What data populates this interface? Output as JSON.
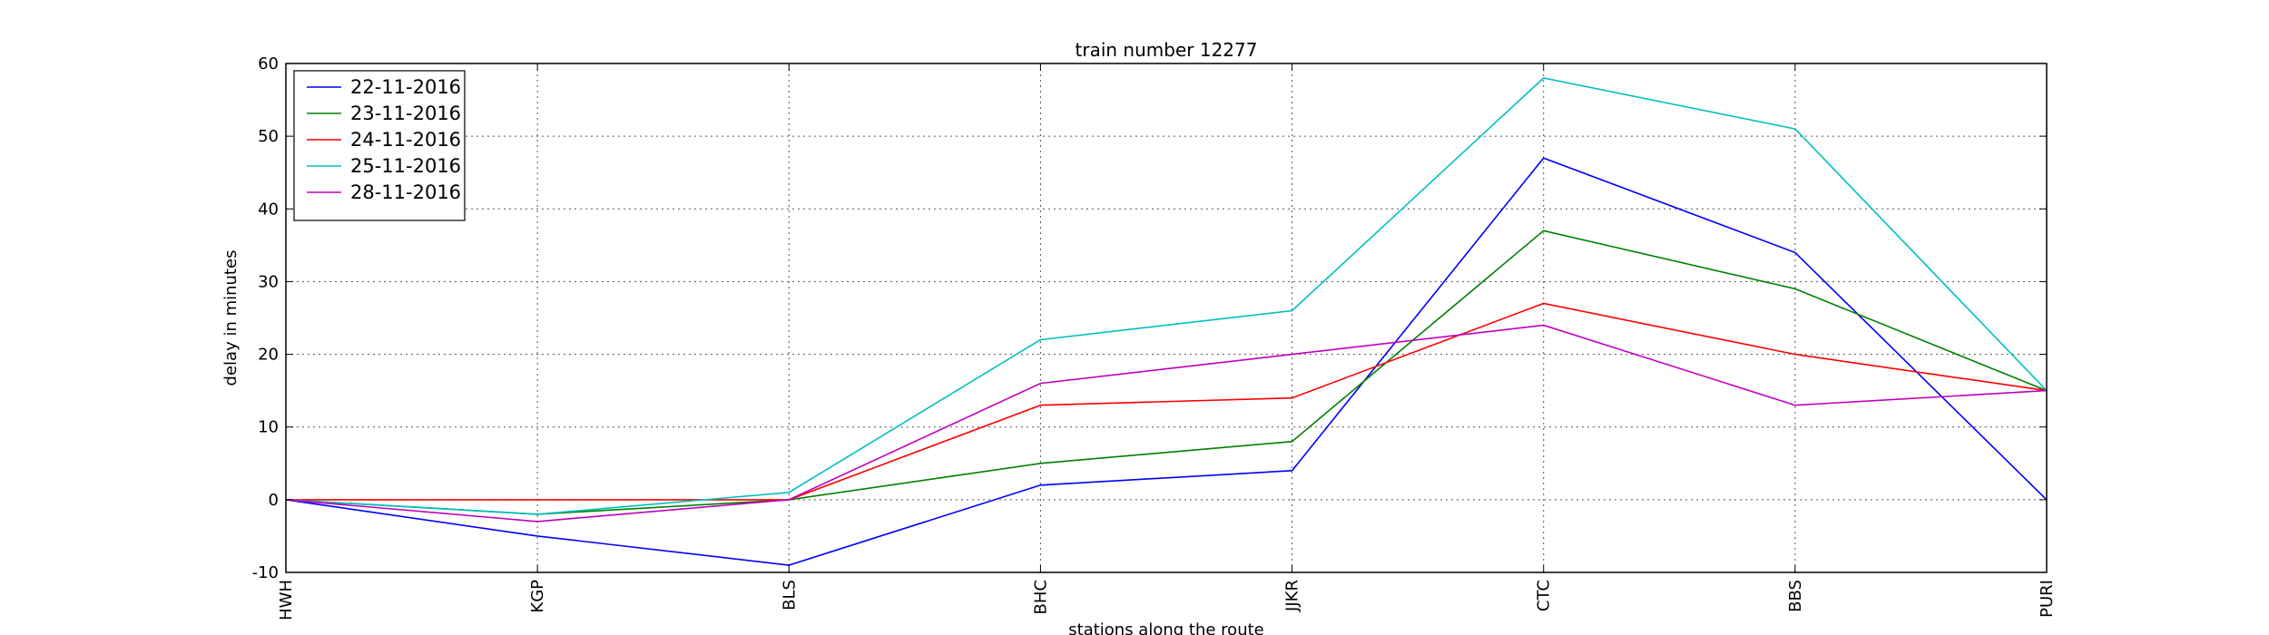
{
  "chart_data": {
    "type": "line",
    "title": "train number 12277",
    "xlabel": "stations along the route",
    "ylabel": "delay in minutes",
    "categories": [
      "HWH",
      "KGP",
      "BLS",
      "BHC",
      "JJKR",
      "CTC",
      "BBS",
      "PURI"
    ],
    "ylim": [
      -10,
      60
    ],
    "yticks": [
      -10,
      0,
      10,
      20,
      30,
      40,
      50,
      60
    ],
    "grid": true,
    "legend_position": "top-left",
    "series": [
      {
        "name": "22-11-2016",
        "color": "#0000ff",
        "values": [
          0,
          -5,
          -9,
          2,
          4,
          47,
          34,
          0
        ]
      },
      {
        "name": "23-11-2016",
        "color": "#008000",
        "values": [
          0,
          -2,
          0,
          5,
          8,
          37,
          29,
          15
        ]
      },
      {
        "name": "24-11-2016",
        "color": "#ff0000",
        "values": [
          0,
          0,
          0,
          13,
          14,
          27,
          20,
          15
        ]
      },
      {
        "name": "25-11-2016",
        "color": "#00bfbf",
        "values": [
          0,
          -2,
          1,
          22,
          26,
          58,
          51,
          15
        ]
      },
      {
        "name": "28-11-2016",
        "color": "#bf00bf",
        "values": [
          0,
          -3,
          0,
          16,
          20,
          24,
          13,
          15
        ]
      }
    ]
  }
}
